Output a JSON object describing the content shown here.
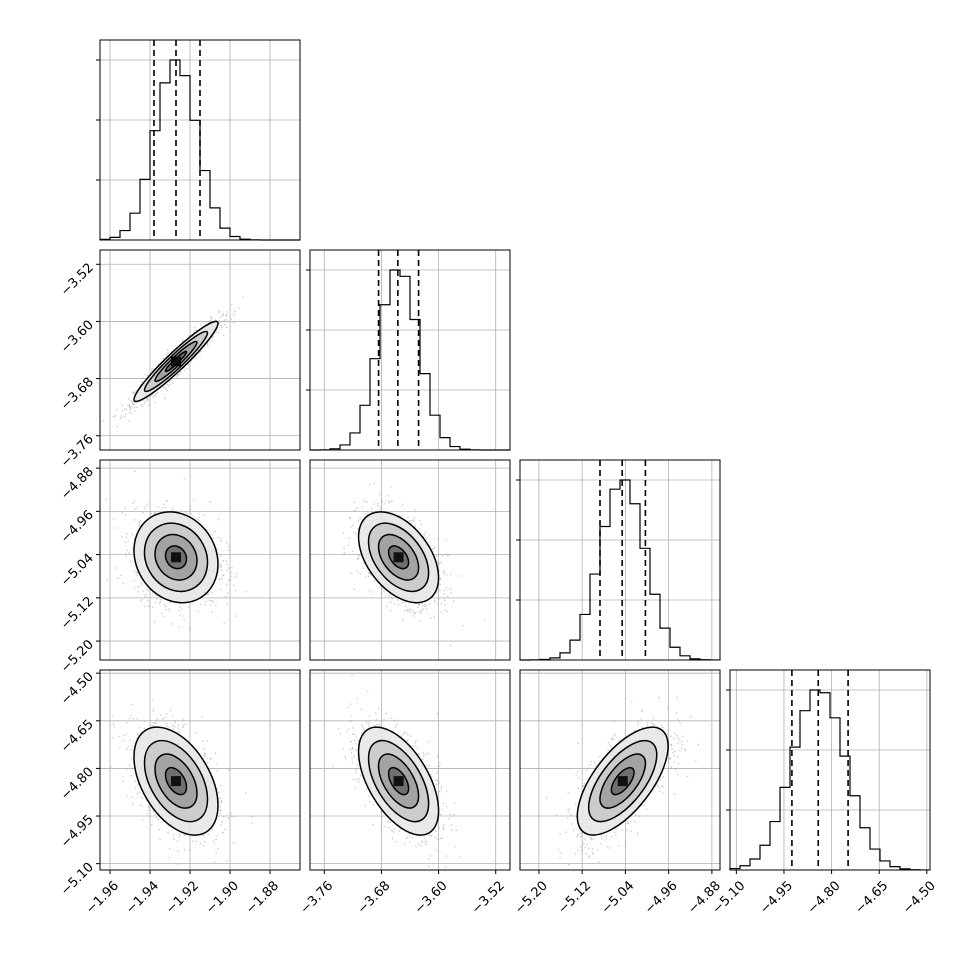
{
  "chart_data": {
    "type": "corner",
    "parameters": [
      {
        "range": [
          -1.965,
          -1.865
        ],
        "ticks": [
          "−1.96",
          "−1.94",
          "−1.92",
          "−1.90",
          "−1.88"
        ],
        "tick_values": [
          -1.96,
          -1.94,
          -1.92,
          -1.9,
          -1.88
        ],
        "mean": -1.927,
        "sd": 0.0105,
        "quantiles": [
          -1.938,
          -1.927,
          -1.915
        ]
      },
      {
        "range": [
          -3.78,
          -3.5
        ],
        "ticks": [
          "−3.76",
          "−3.68",
          "−3.60",
          "−3.52"
        ],
        "tick_values": [
          -3.76,
          -3.68,
          -3.6,
          -3.52
        ],
        "mean": -3.656,
        "sd": 0.028,
        "quantiles": [
          -3.684,
          -3.657,
          -3.628
        ]
      },
      {
        "range": [
          -5.235,
          -4.865
        ],
        "ticks": [
          "−5.20",
          "−5.12",
          "−5.04",
          "−4.96",
          "−4.88"
        ],
        "tick_values": [
          -5.2,
          -5.12,
          -5.04,
          -4.96,
          -4.88
        ],
        "mean": -5.045,
        "sd": 0.042,
        "quantiles": [
          -5.087,
          -5.046,
          -5.003
        ]
      },
      {
        "range": [
          -5.12,
          -4.49
        ],
        "ticks": [
          "−5.10",
          "−4.95",
          "−4.80",
          "−4.65",
          "−4.50"
        ],
        "tick_values": [
          -5.1,
          -4.95,
          -4.8,
          -4.65,
          -4.5
        ],
        "mean": -4.84,
        "sd": 0.085,
        "quantiles": [
          -4.925,
          -4.842,
          -4.748
        ]
      }
    ],
    "correlations": [
      {
        "pair": [
          0,
          1
        ],
        "r": 0.95
      },
      {
        "pair": [
          0,
          2
        ],
        "r": -0.15
      },
      {
        "pair": [
          1,
          2
        ],
        "r": -0.45
      },
      {
        "pair": [
          0,
          3
        ],
        "r": -0.45
      },
      {
        "pair": [
          1,
          3
        ],
        "r": -0.55
      },
      {
        "pair": [
          2,
          3
        ],
        "r": 0.65
      }
    ],
    "contour_levels_sigma": [
      0.5,
      1.0,
      1.5,
      2.0
    ],
    "histogram_bins": 20,
    "grid": true
  }
}
